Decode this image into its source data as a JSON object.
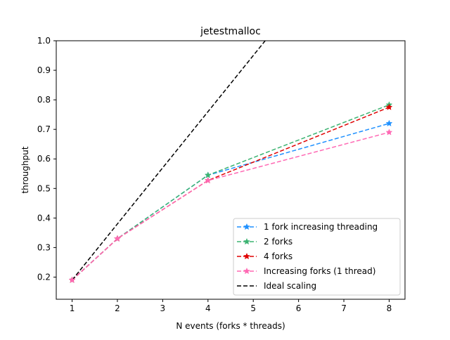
{
  "chart_data": {
    "type": "line",
    "title": "jetestmalloc",
    "xlabel": "N events (forks * threads)",
    "ylabel": "throughput",
    "xlim": [
      0.65,
      8.35
    ],
    "ylim": [
      0.125,
      1.0
    ],
    "xticks": [
      1,
      2,
      3,
      4,
      5,
      6,
      7,
      8
    ],
    "yticks": [
      0.2,
      0.3,
      0.4,
      0.5,
      0.6,
      0.7,
      0.8,
      0.9,
      1.0
    ],
    "xtick_labels": [
      "1",
      "2",
      "3",
      "4",
      "5",
      "6",
      "7",
      "8"
    ],
    "ytick_labels": [
      "0.2",
      "0.3",
      "0.4",
      "0.5",
      "0.6",
      "0.7",
      "0.8",
      "0.9",
      "1.0"
    ],
    "grid": false,
    "legend_position": "lower-right",
    "series": [
      {
        "name": "1 fork increasing threading",
        "color": "#1e90ff",
        "marker": "star",
        "dash": "dashed",
        "x": [
          1,
          2,
          4,
          8
        ],
        "y": [
          0.19,
          0.33,
          0.545,
          0.72
        ]
      },
      {
        "name": "2 forks",
        "color": "#3cb371",
        "marker": "star",
        "dash": "dashed",
        "x": [
          1,
          2,
          4,
          8
        ],
        "y": [
          0.19,
          0.33,
          0.545,
          0.783
        ]
      },
      {
        "name": "4 forks",
        "color": "#e00000",
        "marker": "star",
        "dash": "dashed",
        "x": [
          1,
          2,
          4,
          8
        ],
        "y": [
          0.19,
          0.33,
          0.527,
          0.775
        ]
      },
      {
        "name": "Increasing forks (1 thread)",
        "color": "#ff69b4",
        "marker": "star",
        "dash": "dashed",
        "x": [
          1,
          2,
          4,
          8
        ],
        "y": [
          0.19,
          0.33,
          0.527,
          0.69
        ]
      },
      {
        "name": "Ideal scaling",
        "color": "#000000",
        "marker": "none",
        "dash": "dashed",
        "x": [
          1,
          8
        ],
        "y": [
          0.19,
          1.52
        ]
      }
    ]
  }
}
